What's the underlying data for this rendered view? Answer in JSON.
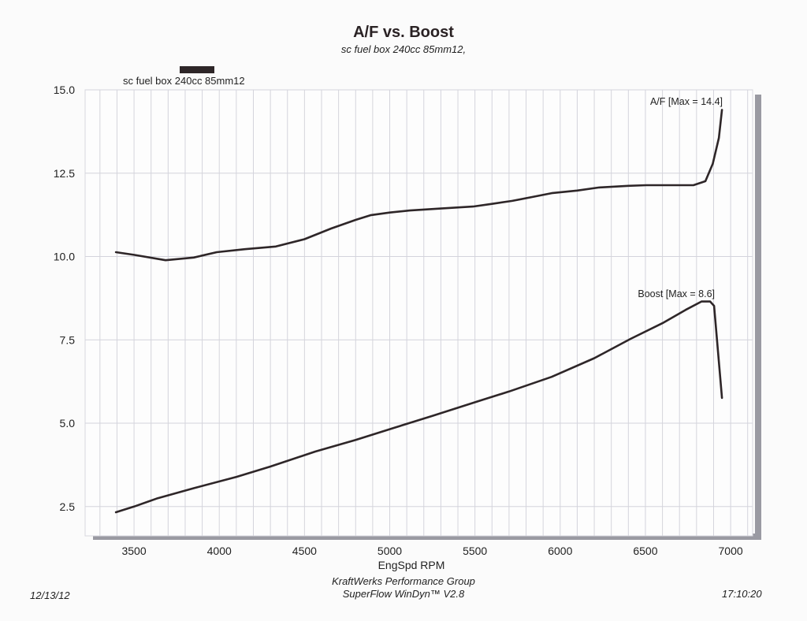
{
  "chart_data": {
    "type": "line",
    "title": "A/F vs. Boost",
    "subtitle": "sc fuel box 240cc 85mm12,",
    "legend": {
      "label": "sc fuel box 240cc 85mm12",
      "placement": "top-left",
      "color": "#2e2628"
    },
    "xlabel": "EngSpd  RPM",
    "ylabel": "",
    "xlim": [
      3213,
      7129
    ],
    "ylim": [
      1.62,
      15.0
    ],
    "xticks": [
      3500,
      4000,
      4500,
      5000,
      5500,
      6000,
      6500,
      7000
    ],
    "xtick_labels": [
      "3500",
      "4000",
      "4500",
      "5000",
      "5500",
      "6000",
      "6500",
      "7000"
    ],
    "yticks": [
      2.5,
      5.0,
      7.5,
      10.0,
      12.5,
      15.0
    ],
    "ytick_labels": [
      "2.5",
      "5.0",
      "7.5",
      "10.0",
      "12.5",
      "15.0"
    ],
    "grid": true,
    "series": [
      {
        "name": "A/F",
        "annotation": "A/F   [Max = 14.4]",
        "color": "#2e2628",
        "x": [
          3394,
          3500,
          3685,
          3850,
          3985,
          4150,
          4332,
          4500,
          4656,
          4800,
          4887,
          5000,
          5118,
          5300,
          5488,
          5600,
          5719,
          5850,
          5950,
          6100,
          6228,
          6400,
          6505,
          6650,
          6782,
          6852,
          6895,
          6931,
          6949
        ],
        "y": [
          10.13,
          10.05,
          9.89,
          9.97,
          10.13,
          10.22,
          10.3,
          10.52,
          10.84,
          11.1,
          11.24,
          11.32,
          11.38,
          11.44,
          11.5,
          11.58,
          11.67,
          11.8,
          11.9,
          11.98,
          12.07,
          12.12,
          12.14,
          12.14,
          12.14,
          12.26,
          12.78,
          13.56,
          14.4
        ]
      },
      {
        "name": "Boost",
        "annotation": "Boost  [Max = 8.6]",
        "color": "#2e2628",
        "x": [
          3394,
          3500,
          3639,
          3850,
          4101,
          4300,
          4563,
          4800,
          5026,
          5250,
          5488,
          5700,
          5950,
          6200,
          6413,
          6600,
          6736,
          6829,
          6880,
          6903,
          6949
        ],
        "y": [
          2.33,
          2.5,
          2.75,
          3.05,
          3.39,
          3.7,
          4.15,
          4.5,
          4.86,
          5.22,
          5.61,
          5.95,
          6.39,
          6.95,
          7.53,
          8.0,
          8.4,
          8.65,
          8.65,
          8.52,
          5.76
        ]
      }
    ]
  },
  "footer": {
    "company": "KraftWerks Performance Group",
    "software": "SuperFlow WinDyn™ V2.8",
    "date": "12/13/12",
    "time": "17:10:20"
  }
}
